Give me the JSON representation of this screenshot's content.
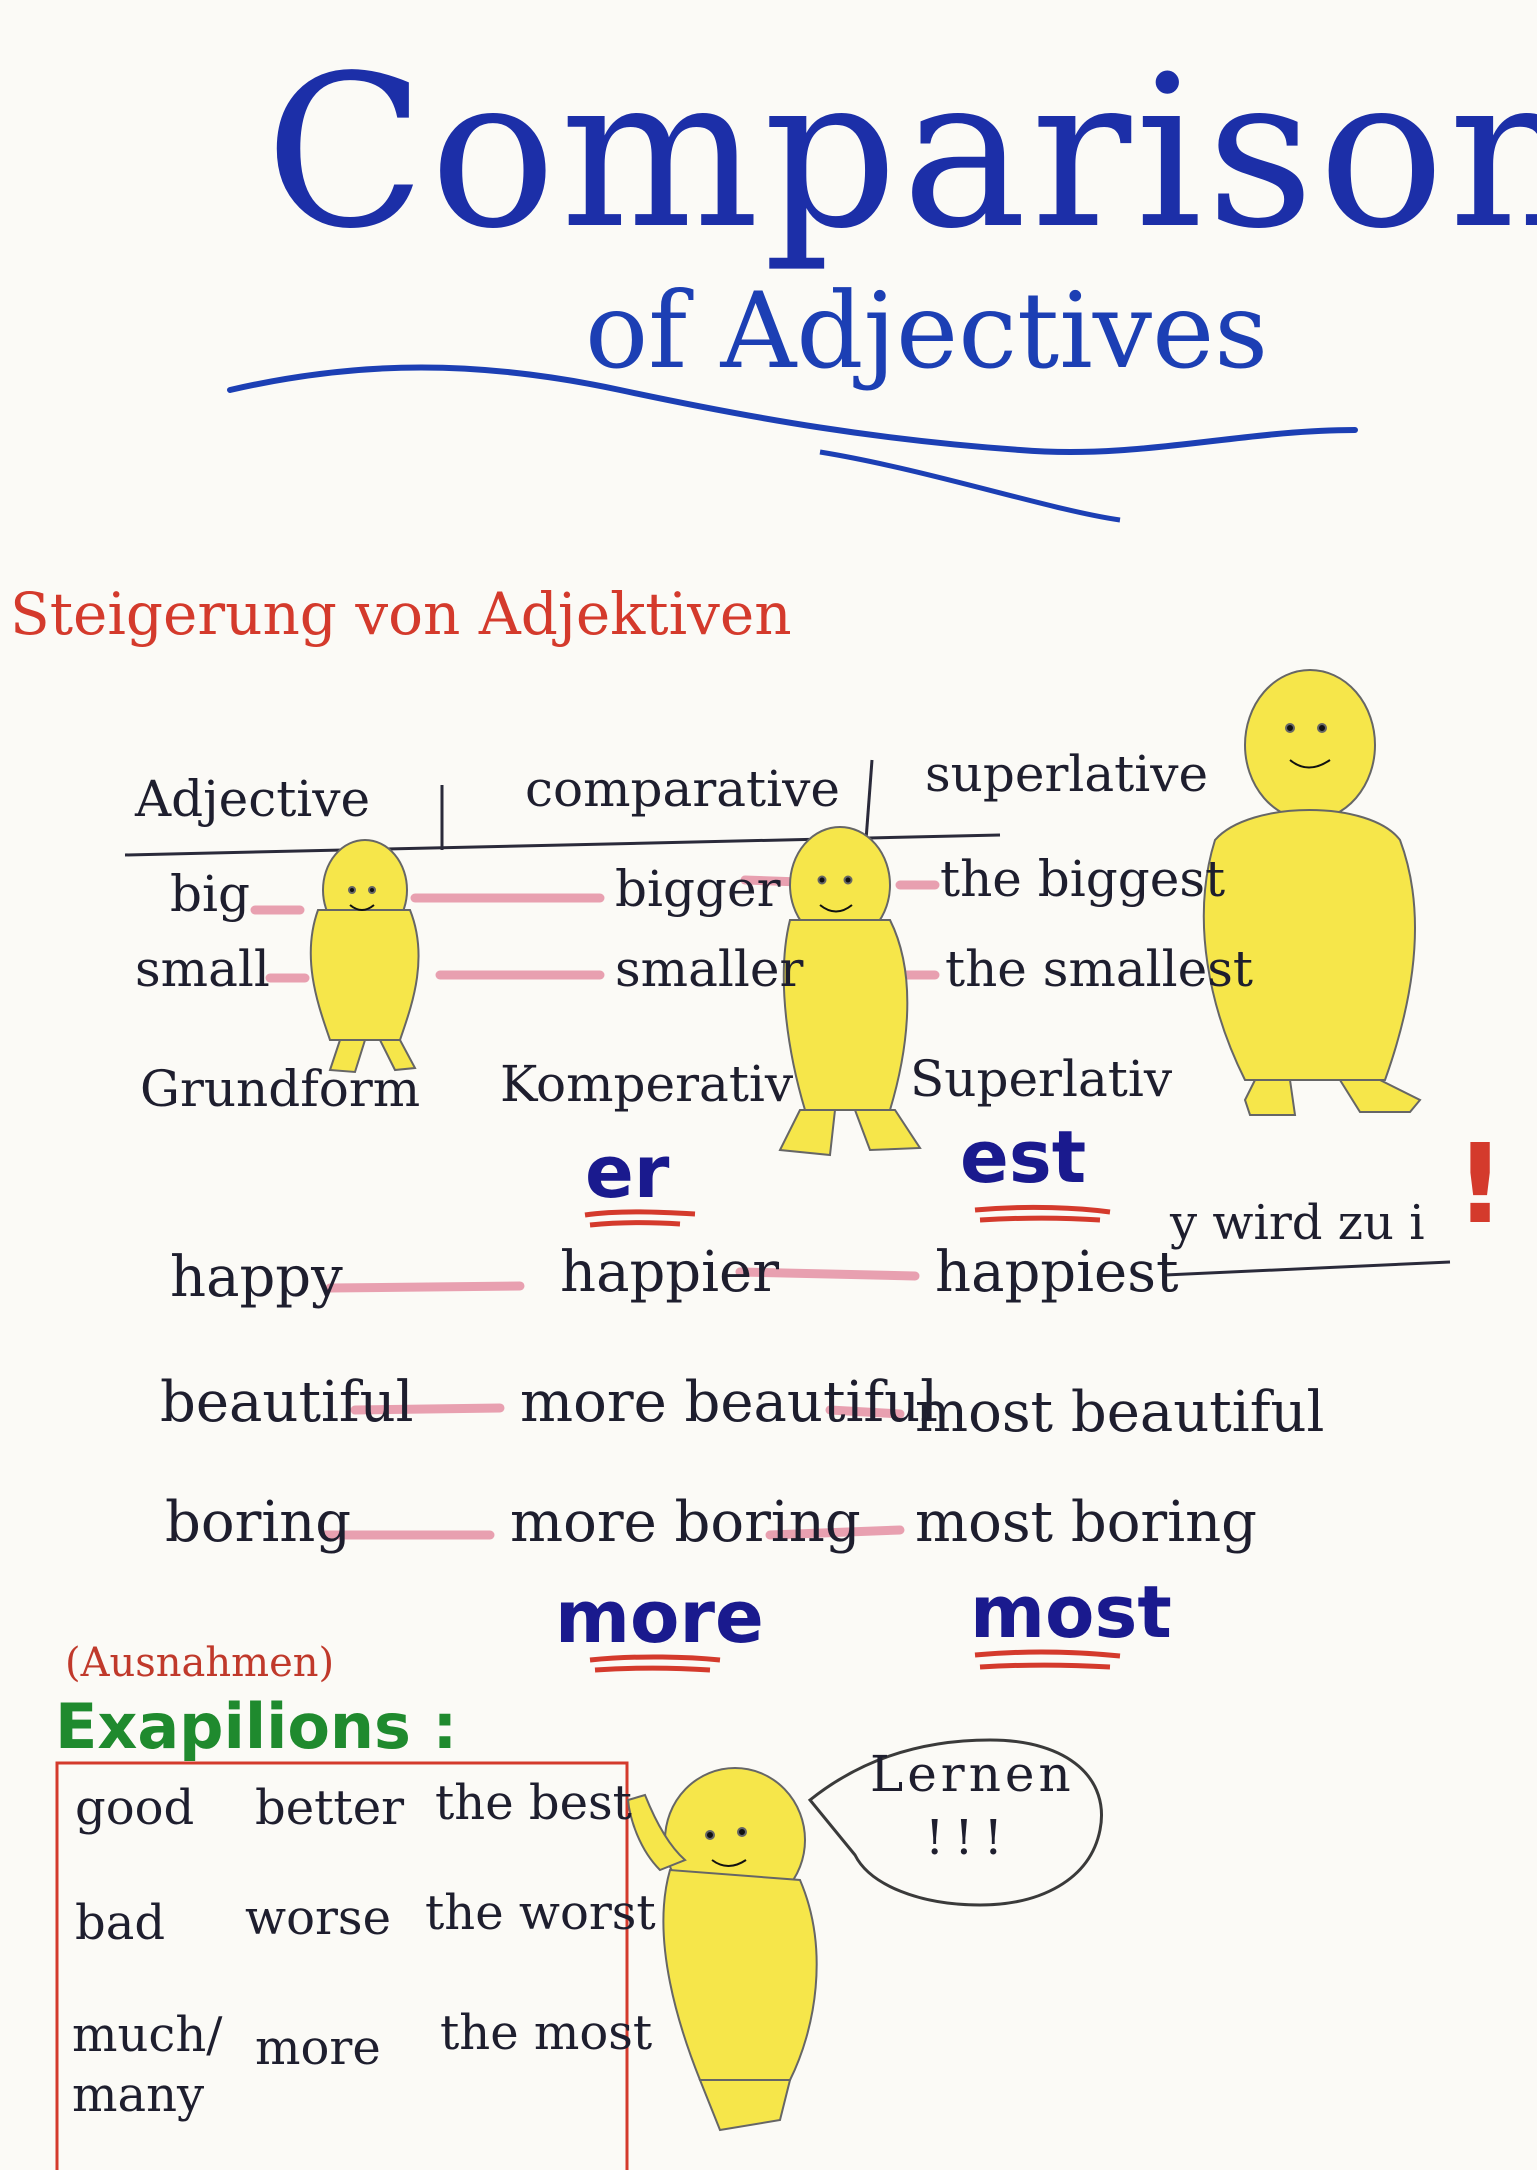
{
  "title": {
    "main": "Comparison",
    "sub": "of Adjectives"
  },
  "subtitle": "Steigerung von Adjektiven",
  "table": {
    "headers": [
      "Adjective",
      "comparative",
      "superlative"
    ],
    "rows": [
      {
        "adjective": "big",
        "comparative": "bigger",
        "superlative": "the biggest"
      },
      {
        "adjective": "small",
        "comparative": "smaller",
        "superlative": "the smallest"
      }
    ],
    "german_labels": [
      "Grundform",
      "Komperativ",
      "Superlativ"
    ]
  },
  "suffixes_short": {
    "comparative": "er",
    "superlative": "est"
  },
  "rule_note": "y wird zu i",
  "long_rows": [
    {
      "adjective": "happy",
      "comparative": "happier",
      "superlative": "happiest"
    },
    {
      "adjective": "beautiful",
      "comparative": "more beautiful",
      "superlative": "most beautiful"
    },
    {
      "adjective": "boring",
      "comparative": "more boring",
      "superlative": "most boring"
    }
  ],
  "suffixes_long": {
    "comparative": "more",
    "superlative": "most"
  },
  "exceptions": {
    "label_de": "(Ausnahmen)",
    "title": "Exapilions :",
    "rows": [
      {
        "adjective": "good",
        "comparative": "better",
        "superlative": "the best"
      },
      {
        "adjective": "bad",
        "comparative": "worse",
        "superlative": "the worst"
      },
      {
        "adjective": "much/ many",
        "comparative": "more",
        "superlative": "the most"
      }
    ]
  },
  "speech_bubble": {
    "text": "Lernen",
    "marks": "!!!"
  },
  "colors": {
    "title": "#1c2fa8",
    "subtitle": "#d43a2c",
    "connector": "#e8a0b0",
    "creature": "#f6e64a",
    "exceptions_title": "#1f8a2e",
    "suffix": "#1a1a8e"
  }
}
